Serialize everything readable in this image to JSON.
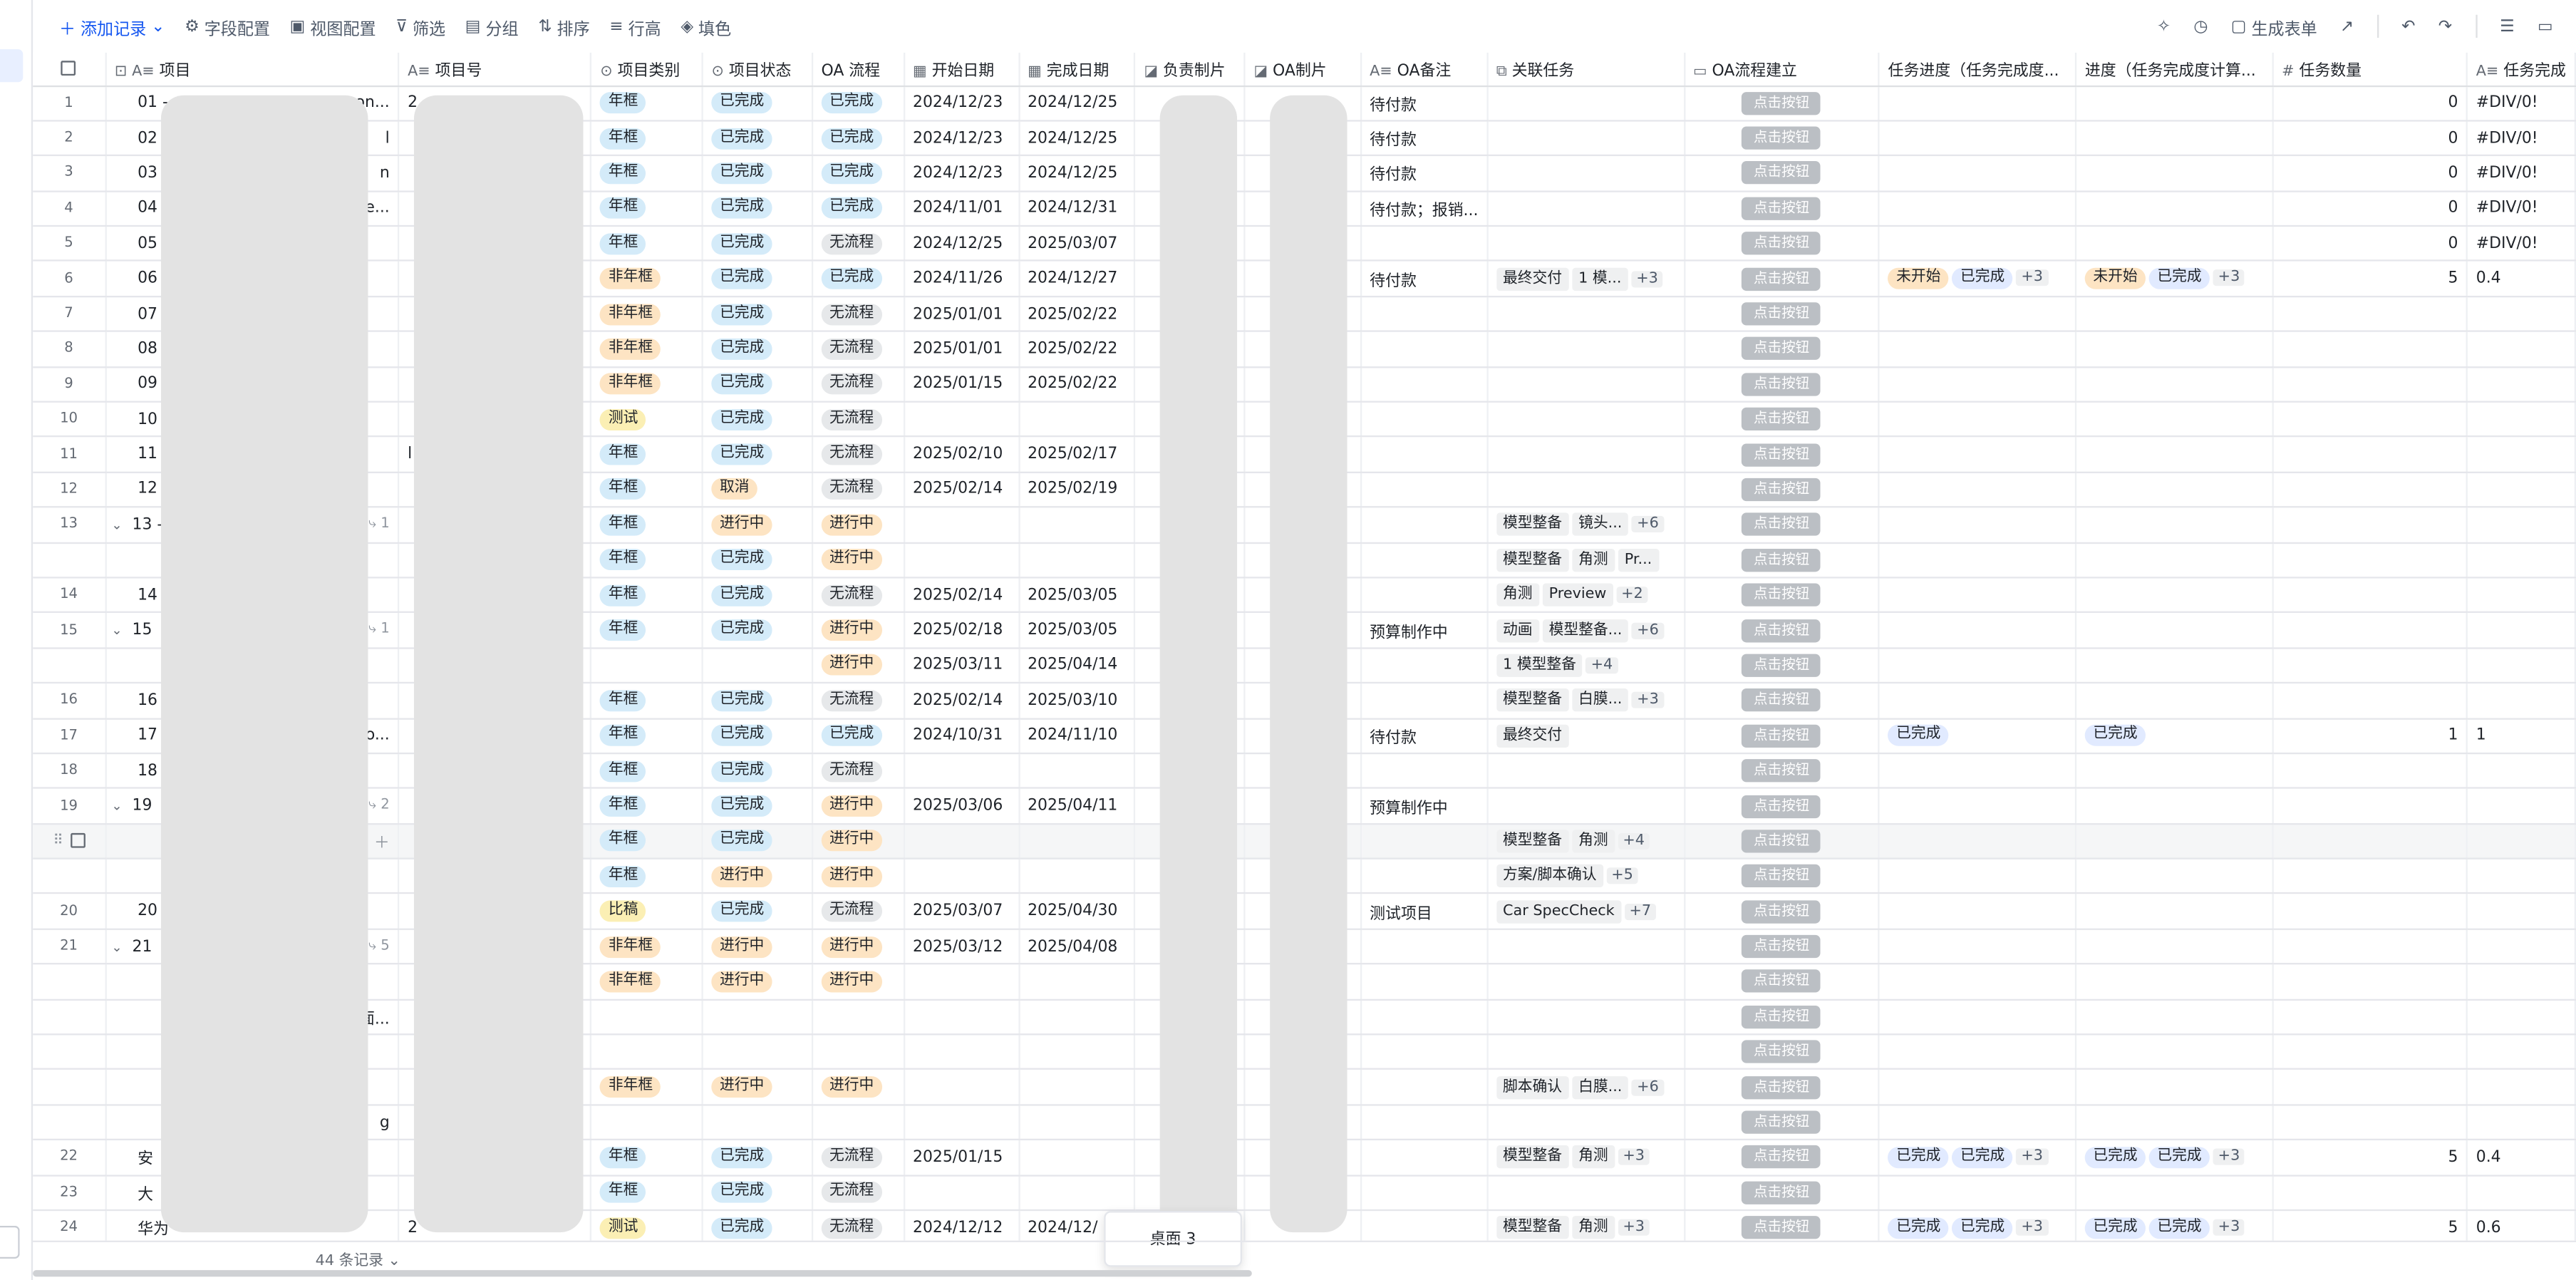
{
  "toolbar": {
    "add_record": "添加记录",
    "field_config": "字段配置",
    "view_config": "视图配置",
    "filter": "筛选",
    "group": "分组",
    "sort": "排序",
    "row_height": "行高",
    "fill_color": "填色",
    "generate_form": "生成表单"
  },
  "columns": [
    "项目",
    "项目号",
    "项目类别",
    "项目状态",
    "OA 流程",
    "开始日期",
    "完成日期",
    "负责制片",
    "OA制片",
    "OA备注",
    "关联任务",
    "OA流程建立",
    "任务进度（任务完成度...",
    "进度（任务完成度计算...",
    "任务数量",
    "任务完成"
  ],
  "button_label": "点击按钮",
  "rows": [
    {
      "num": "1",
      "name": "01 -",
      "name_tail": "on...",
      "code": "2",
      "cat": "年框",
      "status": "已完成",
      "oa": "已完成",
      "start": "2024/12/23",
      "end": "2024/12/25",
      "note": "待付款",
      "tasks": [],
      "more": "",
      "prog1": [],
      "prog1_more": "",
      "prog2": [],
      "prog2_more": "",
      "count": "0",
      "done": "#DIV/0!"
    },
    {
      "num": "2",
      "name": "02 -",
      "name_tail": "l",
      "code": "",
      "cat": "年框",
      "status": "已完成",
      "oa": "已完成",
      "start": "2024/12/23",
      "end": "2024/12/25",
      "note": "待付款",
      "tasks": [],
      "more": "",
      "prog1": [],
      "prog1_more": "",
      "prog2": [],
      "prog2_more": "",
      "count": "0",
      "done": "#DIV/0!"
    },
    {
      "num": "3",
      "name": "03",
      "name_tail": "n",
      "code": "",
      "cat": "年框",
      "status": "已完成",
      "oa": "已完成",
      "start": "2024/12/23",
      "end": "2024/12/25",
      "note": "待付款",
      "tasks": [],
      "more": "",
      "prog1": [],
      "prog1_more": "",
      "prog2": [],
      "prog2_more": "",
      "count": "0",
      "done": "#DIV/0!"
    },
    {
      "num": "4",
      "name": "04",
      "name_tail": "e...",
      "code": "",
      "cat": "年框",
      "status": "已完成",
      "oa": "已完成",
      "start": "2024/11/01",
      "end": "2024/12/31",
      "note": "待付款；报销...",
      "tasks": [],
      "more": "",
      "prog1": [],
      "prog1_more": "",
      "prog2": [],
      "prog2_more": "",
      "count": "0",
      "done": "#DIV/0!"
    },
    {
      "num": "5",
      "name": "05",
      "name_tail": "",
      "code": "",
      "cat": "年框",
      "status": "已完成",
      "oa": "无流程",
      "start": "2024/12/25",
      "end": "2025/03/07",
      "note": "",
      "tasks": [],
      "more": "",
      "prog1": [],
      "prog1_more": "",
      "prog2": [],
      "prog2_more": "",
      "count": "0",
      "done": "#DIV/0!"
    },
    {
      "num": "6",
      "name": "06",
      "name_tail": "",
      "code": "",
      "cat": "非年框",
      "status": "已完成",
      "oa": "已完成",
      "start": "2024/11/26",
      "end": "2024/12/27",
      "note": "待付款",
      "tasks": [
        "最终交付",
        "1 模..."
      ],
      "more": "+3",
      "prog1": [
        "未开始",
        "已完成"
      ],
      "prog1_more": "+3",
      "prog2": [
        "未开始",
        "已完成"
      ],
      "prog2_more": "+3",
      "count": "5",
      "done": "0.4"
    },
    {
      "num": "7",
      "name": "07",
      "name_tail": "",
      "code": "",
      "cat": "非年框",
      "status": "已完成",
      "oa": "无流程",
      "start": "2025/01/01",
      "end": "2025/02/22",
      "note": "",
      "tasks": [],
      "more": "",
      "prog1": [],
      "prog1_more": "",
      "prog2": [],
      "prog2_more": "",
      "count": "",
      "done": ""
    },
    {
      "num": "8",
      "name": "08",
      "name_tail": "",
      "code": "",
      "cat": "非年框",
      "status": "已完成",
      "oa": "无流程",
      "start": "2025/01/01",
      "end": "2025/02/22",
      "note": "",
      "tasks": [],
      "more": "",
      "prog1": [],
      "prog1_more": "",
      "prog2": [],
      "prog2_more": "",
      "count": "",
      "done": ""
    },
    {
      "num": "9",
      "name": "09",
      "name_tail": "",
      "code": "",
      "cat": "非年框",
      "status": "已完成",
      "oa": "无流程",
      "start": "2025/01/15",
      "end": "2025/02/22",
      "note": "",
      "tasks": [],
      "more": "",
      "prog1": [],
      "prog1_more": "",
      "prog2": [],
      "prog2_more": "",
      "count": "",
      "done": ""
    },
    {
      "num": "10",
      "name": "10",
      "name_tail": "",
      "code": "",
      "cat": "测试",
      "status": "已完成",
      "oa": "无流程",
      "start": "",
      "end": "",
      "note": "",
      "tasks": [],
      "more": "",
      "prog1": [],
      "prog1_more": "",
      "prog2": [],
      "prog2_more": "",
      "count": "",
      "done": ""
    },
    {
      "num": "11",
      "name": "11 -",
      "name_tail": "",
      "code": "l",
      "cat": "年框",
      "status": "已完成",
      "oa": "无流程",
      "start": "2025/02/10",
      "end": "2025/02/17",
      "note": "",
      "tasks": [],
      "more": "",
      "prog1": [],
      "prog1_more": "",
      "prog2": [],
      "prog2_more": "",
      "count": "",
      "done": ""
    },
    {
      "num": "12",
      "name": "12 -",
      "name_tail": "",
      "code": "",
      "cat": "年框",
      "status": "取消",
      "oa": "无流程",
      "start": "2025/02/14",
      "end": "2025/02/19",
      "note": "",
      "tasks": [],
      "more": "",
      "prog1": [],
      "prog1_more": "",
      "prog2": [],
      "prog2_more": "",
      "count": "",
      "done": ""
    },
    {
      "num": "13",
      "name": "13 -",
      "name_tail": "",
      "sub": "1",
      "code": "",
      "cat": "年框",
      "status": "进行中",
      "oa": "进行中",
      "start": "",
      "end": "",
      "note": "",
      "tasks": [
        "模型整备",
        "镜头..."
      ],
      "more": "+6",
      "prog1": [],
      "prog1_more": "",
      "prog2": [],
      "prog2_more": "",
      "count": "",
      "done": ""
    },
    {
      "num": "",
      "name": "",
      "name_tail": "",
      "code": "",
      "cat": "年框",
      "status": "已完成",
      "oa": "进行中",
      "start": "",
      "end": "",
      "note": "",
      "tasks": [
        "模型整备",
        "角测",
        "Pr..."
      ],
      "more": "",
      "prog1": [],
      "prog1_more": "",
      "prog2": [],
      "prog2_more": "",
      "count": "",
      "done": ""
    },
    {
      "num": "14",
      "name": "14",
      "name_tail": "",
      "code": "",
      "cat": "年框",
      "status": "已完成",
      "oa": "无流程",
      "start": "2025/02/14",
      "end": "2025/03/05",
      "note": "",
      "tasks": [
        "角测",
        "Preview"
      ],
      "more": "+2",
      "prog1": [],
      "prog1_more": "",
      "prog2": [],
      "prog2_more": "",
      "count": "",
      "done": ""
    },
    {
      "num": "15",
      "name": "15",
      "name_tail": "",
      "sub": "1",
      "code": "",
      "cat": "年框",
      "status": "已完成",
      "oa": "进行中",
      "start": "2025/02/18",
      "end": "2025/03/05",
      "note": "预算制作中",
      "tasks": [
        "动画",
        "模型整备..."
      ],
      "more": "+6",
      "prog1": [],
      "prog1_more": "",
      "prog2": [],
      "prog2_more": "",
      "count": "",
      "done": ""
    },
    {
      "num": "",
      "name": "",
      "name_tail": "",
      "code": "",
      "cat": "",
      "status": "",
      "oa": "进行中",
      "start": "2025/03/11",
      "end": "2025/04/14",
      "note": "",
      "tasks": [
        "1 模型整备"
      ],
      "more": "+4",
      "prog1": [],
      "prog1_more": "",
      "prog2": [],
      "prog2_more": "",
      "count": "",
      "done": ""
    },
    {
      "num": "16",
      "name": "16",
      "name_tail": "",
      "code": "",
      "cat": "年框",
      "status": "已完成",
      "oa": "无流程",
      "start": "2025/02/14",
      "end": "2025/03/10",
      "note": "",
      "tasks": [
        "模型整备",
        "白膜..."
      ],
      "more": "+3",
      "prog1": [],
      "prog1_more": "",
      "prog2": [],
      "prog2_more": "",
      "count": "",
      "done": ""
    },
    {
      "num": "17",
      "name": "17",
      "name_tail": "o...",
      "code": "",
      "cat": "年框",
      "status": "已完成",
      "oa": "已完成",
      "start": "2024/10/31",
      "end": "2024/11/10",
      "note": "待付款",
      "tasks": [
        "最终交付"
      ],
      "more": "",
      "prog1": [
        "已完成"
      ],
      "prog1_more": "",
      "prog2": [
        "已完成"
      ],
      "prog2_more": "",
      "count": "1",
      "done": "1"
    },
    {
      "num": "18",
      "name": "18",
      "name_tail": "",
      "code": "",
      "cat": "年框",
      "status": "已完成",
      "oa": "无流程",
      "start": "",
      "end": "",
      "note": "",
      "tasks": [],
      "more": "",
      "prog1": [],
      "prog1_more": "",
      "prog2": [],
      "prog2_more": "",
      "count": "",
      "done": ""
    },
    {
      "num": "19",
      "name": "19",
      "name_tail": "",
      "sub": "2",
      "code": "",
      "cat": "年框",
      "status": "已完成",
      "oa": "进行中",
      "start": "2025/03/06",
      "end": "2025/04/11",
      "note": "预算制作中",
      "tasks": [],
      "more": "",
      "prog1": [],
      "prog1_more": "",
      "prog2": [],
      "prog2_more": "",
      "count": "",
      "done": ""
    },
    {
      "num": "",
      "name": "",
      "name_tail": "",
      "code": "",
      "cat": "年框",
      "status": "已完成",
      "oa": "进行中",
      "start": "",
      "end": "",
      "note": "",
      "tasks": [
        "模型整备",
        "角测"
      ],
      "more": "+4",
      "prog1": [],
      "prog1_more": "",
      "prog2": [],
      "prog2_more": "",
      "count": "",
      "done": "",
      "hover": true
    },
    {
      "num": "",
      "name": "",
      "name_tail": "",
      "code": "",
      "cat": "年框",
      "status": "进行中",
      "oa": "进行中",
      "start": "",
      "end": "",
      "note": "",
      "tasks": [
        "方案/脚本确认"
      ],
      "more": "+5",
      "prog1": [],
      "prog1_more": "",
      "prog2": [],
      "prog2_more": "",
      "count": "",
      "done": ""
    },
    {
      "num": "20",
      "name": "20",
      "name_tail": "",
      "code": "",
      "cat": "比稿",
      "status": "已完成",
      "oa": "无流程",
      "start": "2025/03/07",
      "end": "2025/04/30",
      "note": "测试项目",
      "tasks": [
        "Car SpecCheck"
      ],
      "more": "+7",
      "prog1": [],
      "prog1_more": "",
      "prog2": [],
      "prog2_more": "",
      "count": "",
      "done": ""
    },
    {
      "num": "21",
      "name": "21",
      "name_tail": "",
      "sub": "5",
      "code": "",
      "cat": "非年框",
      "status": "进行中",
      "oa": "进行中",
      "start": "2025/03/12",
      "end": "2025/04/08",
      "note": "",
      "tasks": [],
      "more": "",
      "prog1": [],
      "prog1_more": "",
      "prog2": [],
      "prog2_more": "",
      "count": "",
      "done": ""
    },
    {
      "num": "",
      "name": "",
      "name_tail": "",
      "code": "",
      "cat": "非年框",
      "status": "进行中",
      "oa": "进行中",
      "start": "",
      "end": "",
      "note": "",
      "tasks": [],
      "more": "",
      "prog1": [],
      "prog1_more": "",
      "prog2": [],
      "prog2_more": "",
      "count": "",
      "done": ""
    },
    {
      "num": "",
      "name": "",
      "name_tail": "面...",
      "code": "",
      "cat": "",
      "status": "",
      "oa": "",
      "start": "",
      "end": "",
      "note": "",
      "tasks": [],
      "more": "",
      "prog1": [],
      "prog1_more": "",
      "prog2": [],
      "prog2_more": "",
      "count": "",
      "done": ""
    },
    {
      "num": "",
      "name": "",
      "name_tail": "",
      "code": "",
      "cat": "",
      "status": "",
      "oa": "",
      "start": "",
      "end": "",
      "note": "",
      "tasks": [],
      "more": "",
      "prog1": [],
      "prog1_more": "",
      "prog2": [],
      "prog2_more": "",
      "count": "",
      "done": ""
    },
    {
      "num": "",
      "name": "",
      "name_tail": "",
      "code": "",
      "cat": "非年框",
      "status": "进行中",
      "oa": "进行中",
      "start": "",
      "end": "",
      "note": "",
      "tasks": [
        "脚本确认",
        "白膜..."
      ],
      "more": "+6",
      "prog1": [],
      "prog1_more": "",
      "prog2": [],
      "prog2_more": "",
      "count": "",
      "done": ""
    },
    {
      "num": "",
      "name": "",
      "name_tail": "g",
      "code": "",
      "cat": "",
      "status": "",
      "oa": "",
      "start": "",
      "end": "",
      "note": "",
      "tasks": [],
      "more": "",
      "prog1": [],
      "prog1_more": "",
      "prog2": [],
      "prog2_more": "",
      "count": "",
      "done": ""
    },
    {
      "num": "22",
      "name": "安",
      "name_tail": "",
      "code": "",
      "cat": "年框",
      "status": "已完成",
      "oa": "无流程",
      "start": "2025/01/15",
      "end": "",
      "note": "",
      "tasks": [
        "模型整备",
        "角测"
      ],
      "more": "+3",
      "prog1": [
        "已完成",
        "已完成"
      ],
      "prog1_more": "+3",
      "prog2": [
        "已完成",
        "已完成"
      ],
      "prog2_more": "+3",
      "count": "5",
      "done": "0.4"
    },
    {
      "num": "23",
      "name": "大",
      "name_tail": "",
      "code": "",
      "cat": "年框",
      "status": "已完成",
      "oa": "无流程",
      "start": "",
      "end": "",
      "note": "",
      "tasks": [],
      "more": "",
      "prog1": [],
      "prog1_more": "",
      "prog2": [],
      "prog2_more": "",
      "count": "",
      "done": ""
    },
    {
      "num": "24",
      "name": "华为",
      "name_tail": "",
      "code": "2",
      "cat": "测试",
      "status": "已完成",
      "oa": "无流程",
      "start": "2024/12/12",
      "end": "2024/12/",
      "note": "",
      "tasks": [
        "模型整备",
        "角测"
      ],
      "more": "+3",
      "prog1": [
        "已完成",
        "已完成"
      ],
      "prog1_more": "+3",
      "prog2": [
        "已完成",
        "已完成"
      ],
      "prog2_more": "+3",
      "count": "5",
      "done": "0.6"
    }
  ],
  "footer": {
    "record_count": "44 条记录"
  },
  "sheet_tab": "桌面 3",
  "colors": {
    "accent": "#1456f0",
    "tag_blue": "#d4ebf9",
    "tag_orange": "#fde4c3",
    "tag_yellow": "#fbefb4",
    "button_gray": "#bbbfc4"
  }
}
